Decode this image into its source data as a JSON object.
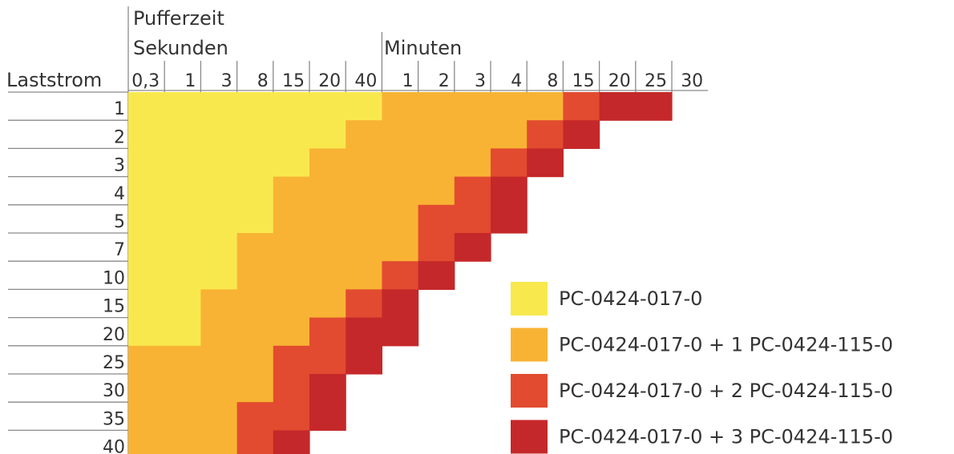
{
  "chart_data": {
    "type": "heatmap",
    "title": "",
    "row_axis_label": "Laststrom",
    "column_header_line1": "Pufferzeit",
    "column_group_labels": [
      "Sekunden",
      "Minuten"
    ],
    "columns": {
      "Sekunden": [
        "0,3",
        "1",
        "3",
        "8",
        "15",
        "20",
        "40"
      ],
      "Minuten": [
        "1",
        "2",
        "3",
        "4",
        "8",
        "15",
        "20",
        "25",
        "30"
      ]
    },
    "rows": [
      "1",
      "2",
      "3",
      "4",
      "5",
      "7",
      "10",
      "15",
      "20",
      "25",
      "30",
      "35",
      "40"
    ],
    "cells": [
      [
        1,
        1,
        1,
        1,
        1,
        1,
        1,
        2,
        2,
        2,
        2,
        2,
        3,
        4,
        4,
        0
      ],
      [
        1,
        1,
        1,
        1,
        1,
        1,
        2,
        2,
        2,
        2,
        2,
        3,
        4,
        0,
        0,
        0
      ],
      [
        1,
        1,
        1,
        1,
        1,
        2,
        2,
        2,
        2,
        2,
        3,
        4,
        0,
        0,
        0,
        0
      ],
      [
        1,
        1,
        1,
        1,
        2,
        2,
        2,
        2,
        2,
        3,
        4,
        0,
        0,
        0,
        0,
        0
      ],
      [
        1,
        1,
        1,
        1,
        2,
        2,
        2,
        2,
        3,
        3,
        4,
        0,
        0,
        0,
        0,
        0
      ],
      [
        1,
        1,
        1,
        2,
        2,
        2,
        2,
        2,
        3,
        4,
        0,
        0,
        0,
        0,
        0,
        0
      ],
      [
        1,
        1,
        1,
        2,
        2,
        2,
        2,
        3,
        4,
        0,
        0,
        0,
        0,
        0,
        0,
        0
      ],
      [
        1,
        1,
        2,
        2,
        2,
        2,
        3,
        4,
        0,
        0,
        0,
        0,
        0,
        0,
        0,
        0
      ],
      [
        1,
        1,
        2,
        2,
        2,
        3,
        4,
        4,
        0,
        0,
        0,
        0,
        0,
        0,
        0,
        0
      ],
      [
        2,
        2,
        2,
        2,
        3,
        3,
        4,
        0,
        0,
        0,
        0,
        0,
        0,
        0,
        0,
        0
      ],
      [
        2,
        2,
        2,
        2,
        3,
        4,
        0,
        0,
        0,
        0,
        0,
        0,
        0,
        0,
        0,
        0
      ],
      [
        2,
        2,
        2,
        3,
        3,
        4,
        0,
        0,
        0,
        0,
        0,
        0,
        0,
        0,
        0,
        0
      ],
      [
        2,
        2,
        2,
        3,
        4,
        0,
        0,
        0,
        0,
        0,
        0,
        0,
        0,
        0,
        0,
        0
      ]
    ],
    "legend_placement": "bottom-right",
    "legend": [
      {
        "level": 1,
        "label": "PC-0424-017-0",
        "color": "#f9e84d"
      },
      {
        "level": 2,
        "label": "PC-0424-017-0 + 1 PC-0424-115-0",
        "color": "#f8b334"
      },
      {
        "level": 3,
        "label": "PC-0424-017-0 + 2 PC-0424-115-0",
        "color": "#e24b30"
      },
      {
        "level": 4,
        "label": "PC-0424-017-0 + 3 PC-0424-115-0",
        "color": "#c5282a"
      }
    ]
  }
}
